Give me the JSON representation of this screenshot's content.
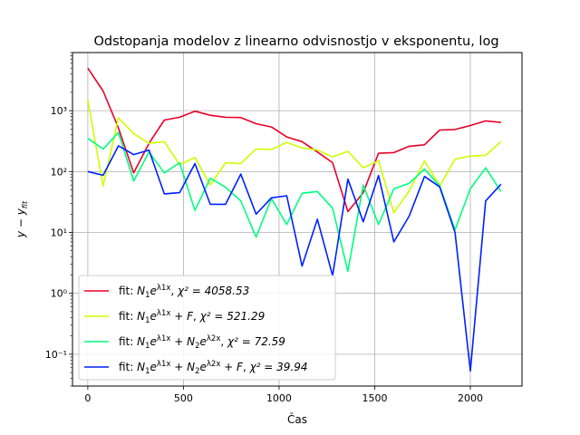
{
  "chart_data": {
    "type": "line",
    "title": "Odstopanja modelov z linearno odvisnostjo v eksponentu, log",
    "xlabel": "Čas",
    "ylabel": "y − y_fit",
    "xlim": [
      -80,
      2270
    ],
    "ylim": [
      0.03,
      9000
    ],
    "yscale": "log",
    "grid": true,
    "legend_position": "lower-left",
    "x_ticks": [
      0,
      500,
      1000,
      1500,
      2000
    ],
    "x_tick_labels": [
      "0",
      "500",
      "1000",
      "1500",
      "2000"
    ],
    "y_ticks": [
      0.1,
      1,
      10,
      100,
      1000
    ],
    "y_tick_labels": [
      "10⁻¹",
      "10⁰",
      "10¹",
      "10²",
      "10³"
    ],
    "x": [
      0,
      80,
      160,
      240,
      320,
      400,
      480,
      560,
      640,
      720,
      800,
      880,
      960,
      1040,
      1120,
      1200,
      1280,
      1360,
      1440,
      1520,
      1600,
      1680,
      1760,
      1840,
      1920,
      2000,
      2080,
      2160
    ],
    "series": [
      {
        "name": "fit: N1e^{λ1x}, χ² = 4058.53",
        "color": "#e8002a",
        "values": [
          5000,
          2100,
          520,
          95,
          290,
          700,
          780,
          980,
          840,
          780,
          770,
          610,
          540,
          370,
          310,
          210,
          140,
          22,
          45,
          200,
          205,
          260,
          275,
          480,
          490,
          570,
          680,
          640
        ]
      },
      {
        "name": "fit: N1e^{λ1x} + F, χ² = 521.29",
        "color": "#ccff00",
        "values": [
          1500,
          58,
          760,
          420,
          290,
          310,
          130,
          170,
          60,
          140,
          135,
          235,
          230,
          300,
          245,
          225,
          175,
          215,
          115,
          150,
          21,
          48,
          150,
          58,
          160,
          180,
          185,
          310
        ]
      },
      {
        "name": "fit: N1e^{λ1x} + N2e^{λ2x}, χ² = 72.59",
        "color": "#00ff80",
        "values": [
          350,
          235,
          440,
          70,
          210,
          95,
          140,
          23,
          78,
          55,
          33,
          8.4,
          36,
          13.5,
          44,
          47,
          25,
          2.3,
          60,
          13.5,
          52,
          64,
          110,
          58,
          11,
          52,
          115,
          47
        ]
      },
      {
        "name": "fit: N1e^{λ1x} + N2e^{λ2x} + F, χ² = 39.94",
        "color": "#0020ff",
        "values": [
          100,
          87,
          265,
          190,
          225,
          43,
          45,
          135,
          29,
          29,
          91,
          20,
          37,
          40,
          2.8,
          16.5,
          1.95,
          75,
          15,
          86,
          7,
          18.5,
          83,
          56,
          10,
          0.053,
          33,
          62
        ]
      }
    ]
  },
  "legend": {
    "entries": [
      {
        "prefix": "fit: ",
        "formula": "N1eλ1x",
        "chi": "χ² = 4058.53"
      },
      {
        "prefix": "fit: ",
        "formula": "N1eλ1x + F",
        "chi": "χ² = 521.29"
      },
      {
        "prefix": "fit: ",
        "formula": "N1eλ1x + N2eλ2x",
        "chi": "χ² = 72.59"
      },
      {
        "prefix": "fit: ",
        "formula": "N1eλ1x + N2eλ2x + F",
        "chi": "χ² = 39.94"
      }
    ]
  }
}
